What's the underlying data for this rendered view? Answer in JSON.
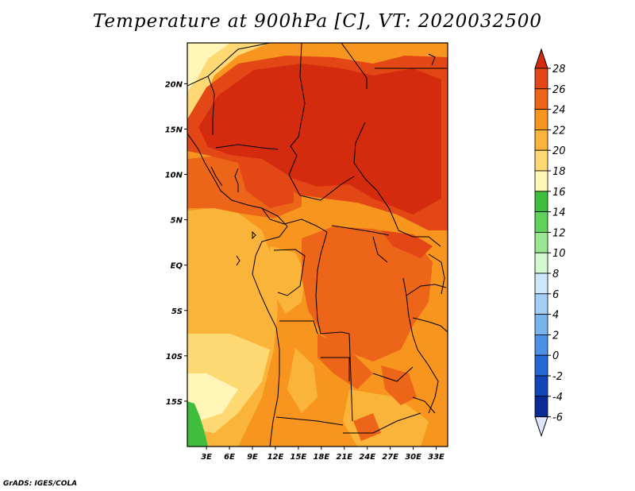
{
  "title": "Temperature at 900hPa [C], VT: 2020032500",
  "credit": "GrADS: IGES/COLA",
  "map": {
    "lon_range": [
      0.5,
      34.5
    ],
    "lat_range": [
      -20,
      24.5
    ],
    "lon_ticks": [
      {
        "value": 3,
        "label": "3E"
      },
      {
        "value": 6,
        "label": "6E"
      },
      {
        "value": 9,
        "label": "9E"
      },
      {
        "value": 12,
        "label": "12E"
      },
      {
        "value": 15,
        "label": "15E"
      },
      {
        "value": 18,
        "label": "18E"
      },
      {
        "value": 21,
        "label": "21E"
      },
      {
        "value": 24,
        "label": "24E"
      },
      {
        "value": 27,
        "label": "27E"
      },
      {
        "value": 30,
        "label": "30E"
      },
      {
        "value": 33,
        "label": "33E"
      }
    ],
    "lat_ticks": [
      {
        "value": 20,
        "label": "20N"
      },
      {
        "value": 15,
        "label": "15N"
      },
      {
        "value": 10,
        "label": "10N"
      },
      {
        "value": 5,
        "label": "5N"
      },
      {
        "value": 0,
        "label": "EQ"
      },
      {
        "value": -5,
        "label": "5S"
      },
      {
        "value": -10,
        "label": "10S"
      },
      {
        "value": -15,
        "label": "15S"
      }
    ]
  },
  "colorbar": {
    "levels": [
      "28",
      "26",
      "24",
      "22",
      "20",
      "18",
      "16",
      "14",
      "12",
      "10",
      "8",
      "6",
      "4",
      "2",
      "0",
      "-2",
      "-4",
      "-6"
    ],
    "colors": [
      "#d42b0f",
      "#e34716",
      "#ed6518",
      "#f7951e",
      "#fbb43a",
      "#fdd873",
      "#fff6b8",
      "#3fbd3c",
      "#62d35a",
      "#9ae691",
      "#d2f8cf",
      "#cce6fa",
      "#a2cff5",
      "#76b4ee",
      "#4b91e6",
      "#2368d6",
      "#1146b8",
      "#0b2a93",
      "#0b1466"
    ],
    "over_color": "#d42b0f",
    "under_color": "#dfe5fb"
  }
}
